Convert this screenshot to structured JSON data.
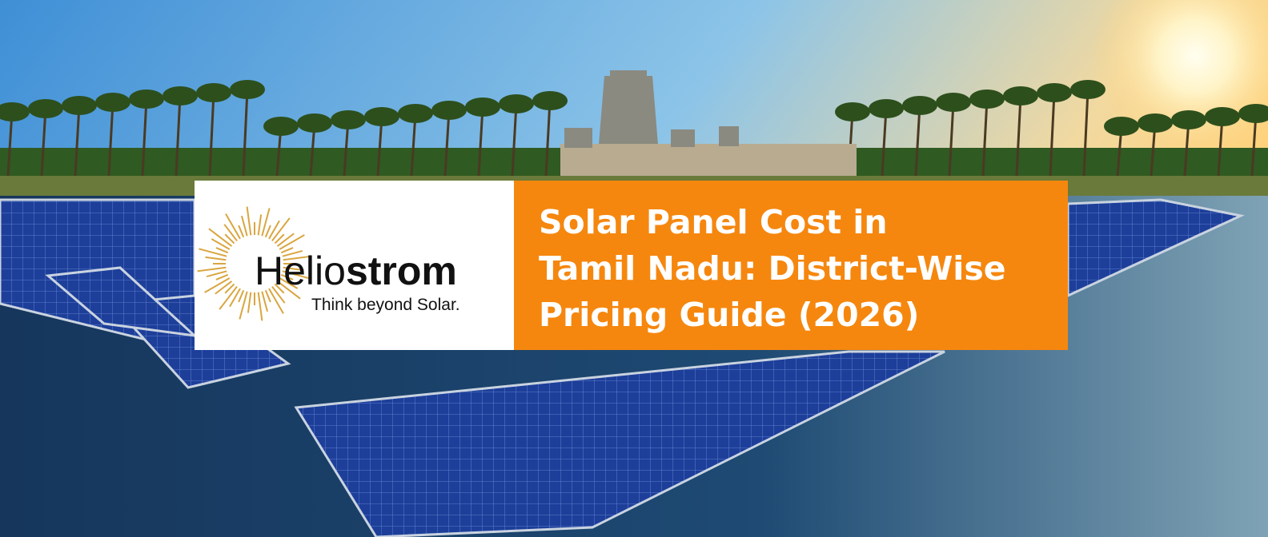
{
  "logo": {
    "name_light": "Helio",
    "name_bold": "strom",
    "tagline": "Think beyond Solar."
  },
  "headline": {
    "lines": [
      "Solar Panel Cost in",
      "Tamil Nadu: District-Wise",
      "Pricing Guide (2026)"
    ]
  }
}
